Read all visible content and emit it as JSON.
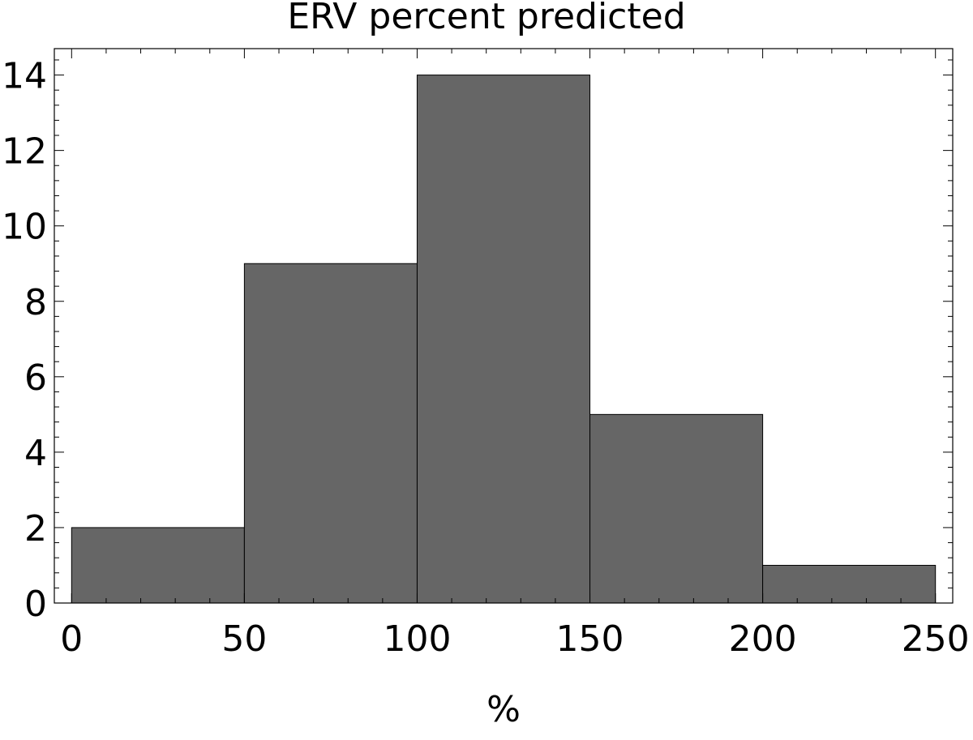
{
  "chart_data": {
    "type": "bar",
    "subtype": "histogram",
    "title": "ERV percent predicted",
    "xlabel": "%",
    "ylabel": "",
    "bins": [
      {
        "start": 0,
        "end": 50,
        "count": 2
      },
      {
        "start": 50,
        "end": 100,
        "count": 9
      },
      {
        "start": 100,
        "end": 150,
        "count": 14
      },
      {
        "start": 150,
        "end": 200,
        "count": 5
      },
      {
        "start": 200,
        "end": 250,
        "count": 1
      }
    ],
    "xlim": [
      -5,
      255
    ],
    "ylim": [
      0,
      14.7
    ],
    "x_ticks": [
      0,
      50,
      100,
      150,
      200,
      250
    ],
    "y_ticks": [
      0,
      2,
      4,
      6,
      8,
      10,
      12,
      14
    ],
    "x_minor_step": 10,
    "y_minor_step": 0.4,
    "bar_color": "#666666",
    "bar_edge_color": "#000000",
    "grid": false,
    "frame": true
  }
}
